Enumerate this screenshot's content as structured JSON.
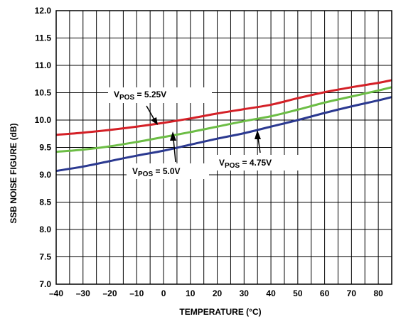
{
  "chart_data": {
    "type": "line",
    "xlabel": "TEMPERATURE (°C)",
    "ylabel": "SSB NOISE FIGURE (dB)",
    "xlim": [
      -40,
      85
    ],
    "ylim": [
      7.0,
      12.0
    ],
    "x_ticks": [
      -40,
      -30,
      -20,
      -10,
      0,
      10,
      20,
      30,
      40,
      50,
      60,
      70,
      80
    ],
    "x_tick_labels": [
      "–40",
      "–30",
      "–20",
      "–10",
      "0",
      "10",
      "20",
      "30",
      "40",
      "50",
      "60",
      "70",
      "80"
    ],
    "y_ticks": [
      7.0,
      7.5,
      8.0,
      8.5,
      9.0,
      9.5,
      10.0,
      10.5,
      11.0,
      11.5,
      12.0
    ],
    "y_tick_labels": [
      "7.0",
      "7.5",
      "8.0",
      "8.5",
      "9.0",
      "9.5",
      "10.0",
      "10.5",
      "11.0",
      "11.5",
      "12.0"
    ],
    "grid": true,
    "x_minor_gridlines": [
      -35,
      -25,
      -15,
      -5,
      5,
      15,
      25,
      35,
      45,
      55,
      65,
      75
    ],
    "x": [
      -40,
      -30,
      -20,
      -10,
      0,
      10,
      20,
      30,
      40,
      50,
      60,
      70,
      80,
      85
    ],
    "series": [
      {
        "name_main": "V",
        "name_sub": "POS",
        "name_value": " = 5.25V",
        "color": "#d42027",
        "values": [
          9.73,
          9.77,
          9.82,
          9.88,
          9.95,
          10.03,
          10.12,
          10.2,
          10.28,
          10.4,
          10.51,
          10.6,
          10.68,
          10.73
        ]
      },
      {
        "name_main": "V",
        "name_sub": "POS",
        "name_value": " = 5.0V",
        "color": "#6cbd45",
        "values": [
          9.42,
          9.46,
          9.52,
          9.6,
          9.69,
          9.78,
          9.88,
          9.98,
          10.07,
          10.19,
          10.32,
          10.43,
          10.54,
          10.6
        ]
      },
      {
        "name_main": "V",
        "name_sub": "POS",
        "name_value": " = 4.75V",
        "color": "#2b3990",
        "values": [
          9.07,
          9.15,
          9.25,
          9.35,
          9.44,
          9.55,
          9.66,
          9.76,
          9.88,
          10.0,
          10.13,
          10.25,
          10.36,
          10.42
        ]
      }
    ]
  }
}
